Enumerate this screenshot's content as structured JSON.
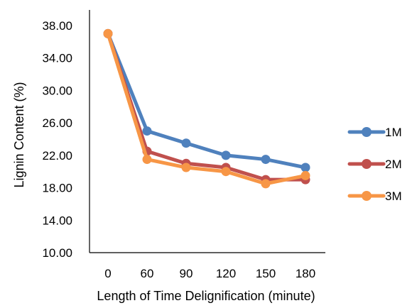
{
  "chart_data": {
    "type": "line",
    "title": "",
    "xlabel": "Length of Time Delignification (minute)",
    "ylabel": "Lignin Content (%)",
    "categories": [
      "0",
      "60",
      "90",
      "120",
      "150",
      "180"
    ],
    "ylim": [
      10,
      38
    ],
    "yticks": [
      "10.00",
      "14.00",
      "18.00",
      "22.00",
      "26.00",
      "30.00",
      "34.00",
      "38.00"
    ],
    "grid": false,
    "legend_position": "right",
    "series": [
      {
        "name": "1M",
        "color": "#4f81bd",
        "values": [
          37.0,
          25.0,
          23.5,
          22.0,
          21.5,
          20.5
        ]
      },
      {
        "name": "2M",
        "color": "#c0504d",
        "values": [
          37.0,
          22.5,
          21.0,
          20.5,
          19.0,
          19.0
        ]
      },
      {
        "name": "3M",
        "color": "#f79646",
        "values": [
          37.0,
          21.5,
          20.5,
          20.0,
          18.5,
          19.5
        ]
      }
    ]
  }
}
